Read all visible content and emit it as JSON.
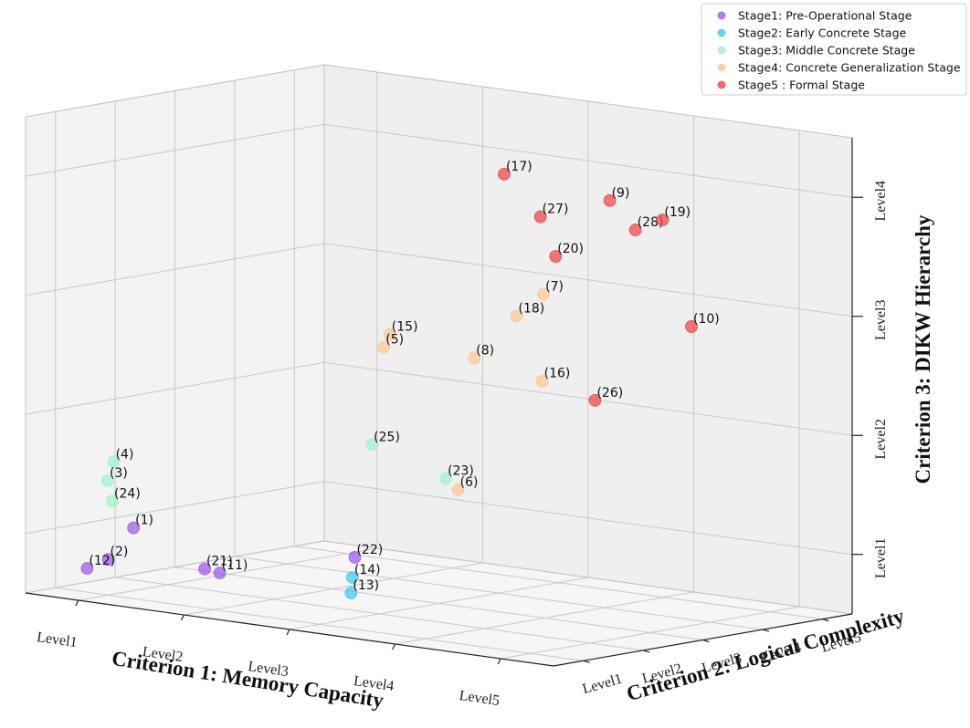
{
  "chart_data": {
    "type": "scatter",
    "projection": "3d",
    "grid": true,
    "legend_position": "top-right",
    "xlabel": "Criterion 1: Memory Capacity",
    "ylabel": "Criterion 2: Logical Complexity",
    "zlabel": "Criterion 3: DIKW Hierarchy",
    "x_ticks": [
      "Level1",
      "Level2",
      "Level3",
      "Level4",
      "Level5"
    ],
    "y_ticks": [
      "Level1",
      "Level2",
      "Level3",
      "Level4",
      "Level5"
    ],
    "z_ticks": [
      "Level1",
      "Level2",
      "Level3",
      "Level4"
    ],
    "xlim": [
      0.5,
      5.5
    ],
    "ylim": [
      0.5,
      5.5
    ],
    "zlim": [
      0.5,
      4.5
    ],
    "series": [
      {
        "name": "Stage1: Pre-Operational Stage",
        "color": "#9b59e6",
        "points": [
          {
            "label": "(1)",
            "x": 0.9,
            "y": 1.6,
            "z": 1.0
          },
          {
            "label": "(2)",
            "x": 1.0,
            "y": 1.0,
            "z": 0.8
          },
          {
            "label": "(12)",
            "x": 0.8,
            "y": 1.0,
            "z": 0.7
          },
          {
            "label": "(21)",
            "x": 1.8,
            "y": 1.2,
            "z": 0.8
          },
          {
            "label": "(11)",
            "x": 2.0,
            "y": 1.1,
            "z": 0.8
          },
          {
            "label": "(22)",
            "x": 2.6,
            "y": 2.3,
            "z": 0.9
          }
        ]
      },
      {
        "name": "Stage2: Early Concrete Stage",
        "color": "#3ec9ec",
        "points": [
          {
            "label": "(14)",
            "x": 3.2,
            "y": 1.2,
            "z": 0.9
          },
          {
            "label": "(13)",
            "x": 3.3,
            "y": 1.0,
            "z": 0.8
          }
        ]
      },
      {
        "name": "Stage3: Middle Concrete Stage",
        "color": "#9ff3c8",
        "points": [
          {
            "label": "(4)",
            "x": 0.6,
            "y": 1.8,
            "z": 1.5
          },
          {
            "label": "(3)",
            "x": 0.6,
            "y": 1.7,
            "z": 1.35
          },
          {
            "label": "(24)",
            "x": 0.7,
            "y": 1.6,
            "z": 1.2
          },
          {
            "label": "(25)",
            "x": 1.8,
            "y": 4.0,
            "z": 1.6
          },
          {
            "label": "(23)",
            "x": 2.5,
            "y": 4.0,
            "z": 1.4
          }
        ]
      },
      {
        "name": "Stage4: Concrete Generalization Stage",
        "color": "#fcc890",
        "points": [
          {
            "label": "(15)",
            "x": 1.8,
            "y": 4.3,
            "z": 2.5
          },
          {
            "label": "(5)",
            "x": 1.8,
            "y": 4.2,
            "z": 2.4
          },
          {
            "label": "(8)",
            "x": 2.6,
            "y": 4.3,
            "z": 2.4
          },
          {
            "label": "(6)",
            "x": 2.9,
            "y": 3.5,
            "z": 1.4
          },
          {
            "label": "(7)",
            "x": 3.2,
            "y": 4.4,
            "z": 3.0
          },
          {
            "label": "(18)",
            "x": 3.0,
            "y": 4.3,
            "z": 2.8
          },
          {
            "label": "(16)",
            "x": 3.3,
            "y": 4.2,
            "z": 2.3
          }
        ]
      },
      {
        "name": "Stage5 : Formal Stage",
        "color": "#ee4444",
        "points": [
          {
            "label": "(17)",
            "x": 2.6,
            "y": 4.8,
            "z": 3.9
          },
          {
            "label": "(27)",
            "x": 3.0,
            "y": 4.7,
            "z": 3.6
          },
          {
            "label": "(9)",
            "x": 3.6,
            "y": 4.8,
            "z": 3.8
          },
          {
            "label": "(28)",
            "x": 3.9,
            "y": 4.7,
            "z": 3.6
          },
          {
            "label": "(19)",
            "x": 4.1,
            "y": 4.8,
            "z": 3.7
          },
          {
            "label": "(20)",
            "x": 3.2,
            "y": 4.6,
            "z": 3.3
          },
          {
            "label": "(10)",
            "x": 4.6,
            "y": 4.4,
            "z": 2.9
          },
          {
            "label": "(26)",
            "x": 3.8,
            "y": 4.2,
            "z": 2.2
          }
        ]
      }
    ]
  }
}
